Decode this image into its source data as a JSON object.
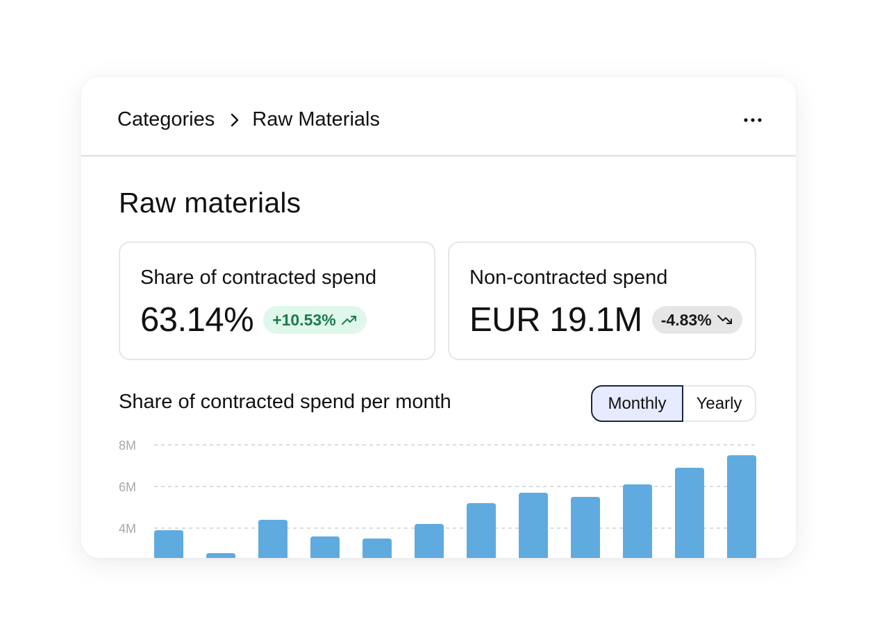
{
  "breadcrumb": {
    "parent": "Categories",
    "current": "Raw Materials"
  },
  "menu": {
    "icon": "more-horizontal-icon"
  },
  "page": {
    "title": "Raw materials"
  },
  "kpis": [
    {
      "label": "Share of contracted spend",
      "value": "63.14%",
      "change": "+10.53%",
      "trend": "up",
      "trend_icon": "trending-up-icon",
      "color": "#1d7a4e"
    },
    {
      "label": "Non-contracted spend",
      "value": "EUR 19.1M",
      "change": "-4.83%",
      "trend": "down",
      "trend_icon": "trending-down-icon",
      "color": "#1a1a1a"
    }
  ],
  "chart": {
    "title": "Share of contracted spend per month",
    "toggle": {
      "options": [
        "Monthly",
        "Yearly"
      ],
      "selected": "Monthly"
    }
  },
  "chart_data": {
    "type": "bar",
    "title": "Share of contracted spend per month",
    "xlabel": "",
    "ylabel": "",
    "y_ticks": [
      "4M",
      "6M",
      "8M"
    ],
    "ylim": [
      2.6,
      8
    ],
    "grid": true,
    "values": [
      3.9,
      2.8,
      4.4,
      3.6,
      3.5,
      4.2,
      5.2,
      5.7,
      5.5,
      6.1,
      6.9,
      7.5
    ],
    "bar_color": "#5fabdf"
  }
}
